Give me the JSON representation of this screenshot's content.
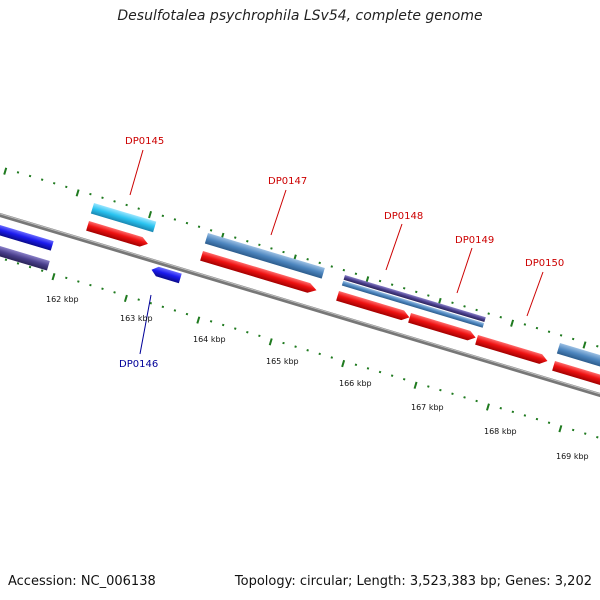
{
  "title": "Desulfotalea psychrophila LSv54, complete genome",
  "footer": {
    "accession": "Accession: NC_006138",
    "summary": "Topology: circular; Length: 3,523,383 bp; Genes: 3,202"
  },
  "colors": {
    "forward_cds": "#ee1111",
    "reverse_cds": "#1b1bee",
    "strand_light_blue": "#29c3f0",
    "strand_steel_blue": "#4d86bf",
    "strand_dark_purple": "#4a3f8c",
    "backbone": "#888888",
    "tick_marks": "#1f7a1f",
    "forward_label": "#cc0000",
    "reverse_label": "#000099"
  },
  "axis": {
    "unit": "kbp",
    "labels": [
      "162 kbp",
      "163 kbp",
      "164 kbp",
      "165 kbp",
      "166 kbp",
      "167 kbp",
      "168 kbp",
      "169 kbp"
    ]
  },
  "gene_labels": {
    "forward": [
      "DP0145",
      "DP0147",
      "DP0148",
      "DP0149",
      "DP0150"
    ],
    "reverse": [
      "DP0146"
    ]
  }
}
